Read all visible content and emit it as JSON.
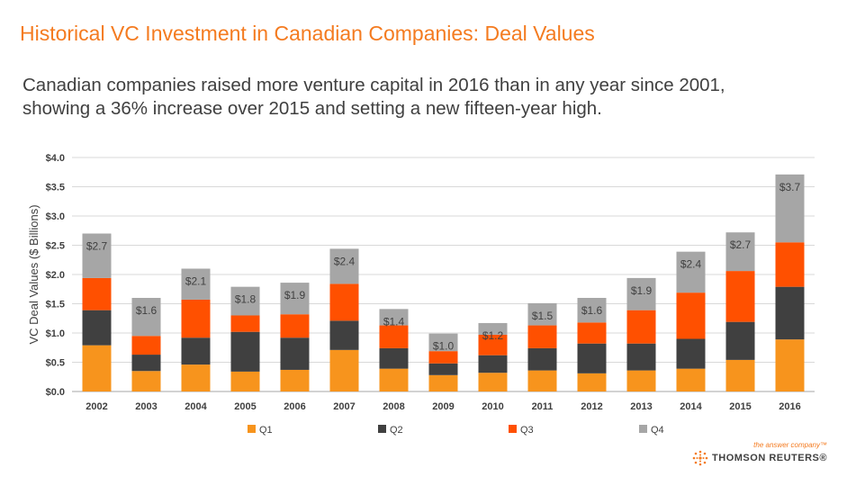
{
  "header": {
    "title": "Historical VC Investment in Canadian Companies: Deal Values",
    "subtitle_line1": "Canadian companies raised more venture capital in 2016 than in any year since 2001,",
    "subtitle_line2": "showing a 36% increase over 2015 and setting a new fifteen-year high."
  },
  "logo": {
    "tagline": "the answer company™",
    "brand": "THOMSON REUTERS®"
  },
  "chart_data": {
    "type": "bar",
    "stacked": true,
    "title": "",
    "xlabel": "",
    "ylabel": "VC Deal Values ($ Billions)",
    "ylim": [
      0,
      4.0
    ],
    "yticks": [
      "$0.0",
      "$0.5",
      "$1.0",
      "$1.5",
      "$2.0",
      "$2.5",
      "$3.0",
      "$3.5",
      "$4.0"
    ],
    "grid": true,
    "legend_position": "bottom",
    "categories": [
      "2002",
      "2003",
      "2004",
      "2005",
      "2006",
      "2007",
      "2008",
      "2009",
      "2010",
      "2011",
      "2012",
      "2013",
      "2014",
      "2015",
      "2016"
    ],
    "series": [
      {
        "name": "Q1",
        "color": "#f7941d",
        "values": [
          0.79,
          0.35,
          0.46,
          0.34,
          0.37,
          0.71,
          0.39,
          0.28,
          0.32,
          0.36,
          0.31,
          0.36,
          0.39,
          0.54,
          0.89
        ]
      },
      {
        "name": "Q2",
        "color": "#404040",
        "values": [
          0.6,
          0.28,
          0.46,
          0.68,
          0.55,
          0.5,
          0.35,
          0.2,
          0.3,
          0.38,
          0.51,
          0.46,
          0.51,
          0.65,
          0.9
        ]
      },
      {
        "name": "Q3",
        "color": "#ff5000",
        "values": [
          0.55,
          0.32,
          0.65,
          0.28,
          0.4,
          0.63,
          0.39,
          0.21,
          0.35,
          0.39,
          0.36,
          0.57,
          0.79,
          0.87,
          0.76
        ]
      },
      {
        "name": "Q4",
        "color": "#a6a6a6",
        "values": [
          0.76,
          0.65,
          0.53,
          0.49,
          0.54,
          0.6,
          0.28,
          0.3,
          0.2,
          0.38,
          0.42,
          0.55,
          0.7,
          0.66,
          1.16
        ]
      }
    ],
    "totals": [
      "$2.7",
      "$1.6",
      "$2.1",
      "$1.8",
      "$1.9",
      "$2.4",
      "$1.4",
      "$1.0",
      "$1.2",
      "$1.5",
      "$1.6",
      "$1.9",
      "$2.4",
      "$2.7",
      "$3.7"
    ]
  }
}
